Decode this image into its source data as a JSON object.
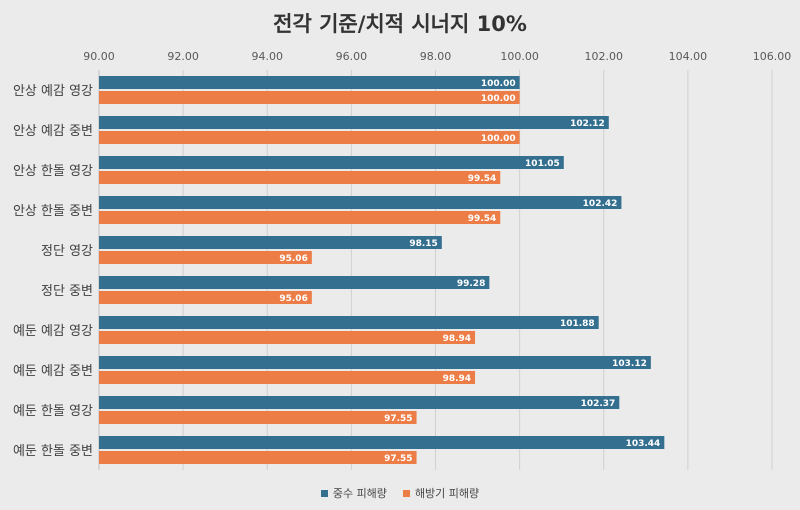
{
  "chart_data": {
    "type": "bar",
    "orientation": "horizontal",
    "title": "전각 기준/치적 시너지 10%",
    "categories": [
      "안상 예감 영강",
      "안상 예감 중변",
      "안상 한돌 영강",
      "안상 한돌 중변",
      "정단 영강",
      "정단 중변",
      "예둔 예감 영강",
      "예둔 예감 중변",
      "예둔 한돌 영강",
      "예둔 한돌 중변"
    ],
    "series": [
      {
        "name": "중수 피해량",
        "color": "#356f8f",
        "values": [
          100.0,
          102.12,
          101.05,
          102.42,
          98.15,
          99.28,
          101.88,
          103.12,
          102.37,
          103.44
        ]
      },
      {
        "name": "해방기 피해량",
        "color": "#ed7d47",
        "values": [
          100.0,
          100.0,
          99.54,
          99.54,
          95.06,
          95.06,
          98.94,
          98.94,
          97.55,
          97.55
        ]
      }
    ],
    "xlim": [
      90,
      106
    ],
    "ticks": [
      "90.00",
      "92.00",
      "94.00",
      "96.00",
      "98.00",
      "100.00",
      "102.00",
      "104.00",
      "106.00"
    ],
    "xaxis_position": "top",
    "grid": true,
    "legend_position": "bottom"
  }
}
